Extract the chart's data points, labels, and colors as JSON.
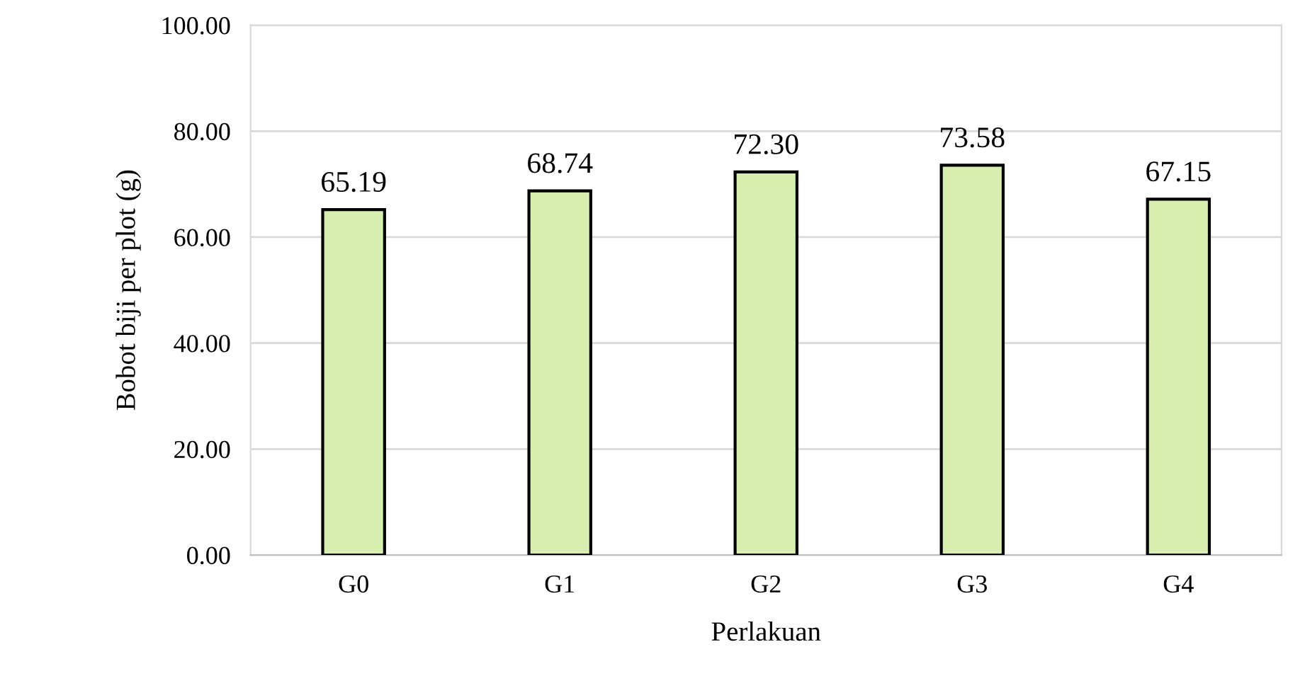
{
  "chart_data": {
    "type": "bar",
    "xlabel": "Perlakuan",
    "ylabel": "Bobot biji per plot (g)",
    "categories": [
      "G0",
      "G1",
      "G2",
      "G3",
      "G4"
    ],
    "values": [
      65.19,
      68.74,
      72.3,
      73.58,
      67.15
    ],
    "value_labels": [
      "65.19",
      "68.74",
      "72.30",
      "73.58",
      "67.15"
    ],
    "color": "#d6efb0",
    "ylim": [
      0,
      100
    ],
    "yticks": [
      {
        "value": 0,
        "label": "0.00"
      },
      {
        "value": 20,
        "label": "20.00"
      },
      {
        "value": 40,
        "label": "40.00"
      },
      {
        "value": 60,
        "label": "60.00"
      },
      {
        "value": 80,
        "label": "80.00"
      },
      {
        "value": 100,
        "label": "100.00"
      }
    ],
    "grid": "y",
    "legend": false
  }
}
